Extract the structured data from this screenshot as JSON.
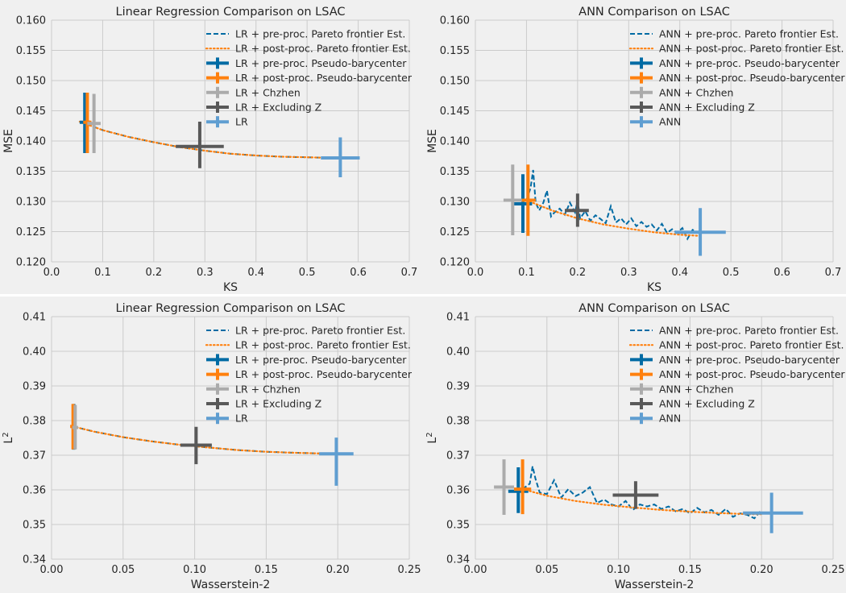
{
  "colors": {
    "background": "#f0f0f0",
    "plot_bg": "#f0f0f0",
    "grid": "#cbcbcb",
    "pre_proc": "#006ba4",
    "post_proc": "#ff800e",
    "chzhen": "#ababab",
    "excluding_z": "#595959",
    "baseline": "#5f9ed1"
  },
  "chart_data": [
    {
      "type": "line",
      "title": "Linear Regression Comparison on LSAC",
      "xlabel": "KS",
      "ylabel": "MSE",
      "ylabel_format": "plain",
      "xlim": [
        0,
        0.7
      ],
      "ylim": [
        0.12,
        0.16
      ],
      "xticks": [
        0.0,
        0.1,
        0.2,
        0.3,
        0.4,
        0.5,
        0.6,
        0.7
      ],
      "yticks": [
        0.12,
        0.125,
        0.13,
        0.135,
        0.14,
        0.145,
        0.15,
        0.155,
        0.16
      ],
      "x_decimals": 1,
      "y_decimals": 3,
      "grid": true,
      "legend_position": "top-right",
      "series": [
        {
          "name": "LR + pre-proc. Pareto frontier Est.",
          "style": "dashed",
          "color_key": "pre_proc",
          "x": [
            0.055,
            0.1,
            0.15,
            0.2,
            0.25,
            0.3,
            0.35,
            0.4,
            0.45,
            0.5,
            0.55,
            0.6
          ],
          "y": [
            0.1432,
            0.1418,
            0.1407,
            0.1398,
            0.139,
            0.1384,
            0.1379,
            0.1376,
            0.1374,
            0.1373,
            0.1372,
            0.1372
          ]
        },
        {
          "name": "LR + post-proc. Pareto frontier Est.",
          "style": "dotted",
          "color_key": "post_proc",
          "x": [
            0.055,
            0.1,
            0.15,
            0.2,
            0.25,
            0.3,
            0.35,
            0.4,
            0.45,
            0.5,
            0.55,
            0.6
          ],
          "y": [
            0.1432,
            0.1418,
            0.1407,
            0.1398,
            0.139,
            0.1384,
            0.1379,
            0.1376,
            0.1374,
            0.1373,
            0.1372,
            0.1372
          ]
        }
      ],
      "points": [
        {
          "name": "LR + pre-proc. Pseudo-barycenter",
          "color_key": "pre_proc",
          "x": 0.065,
          "y": 0.1431,
          "xerr": [
            0.055,
            0.075
          ],
          "yerr": [
            0.138,
            0.148
          ]
        },
        {
          "name": "LR + post-proc. Pseudo-barycenter",
          "color_key": "post_proc",
          "x": 0.07,
          "y": 0.1431,
          "xerr": [
            0.062,
            0.078
          ],
          "yerr": [
            0.138,
            0.148
          ]
        },
        {
          "name": "LR + Chzhen",
          "color_key": "chzhen",
          "x": 0.083,
          "y": 0.1429,
          "xerr": [
            0.07,
            0.096
          ],
          "yerr": [
            0.138,
            0.1478
          ]
        },
        {
          "name": "LR + Excluding Z",
          "color_key": "excluding_z",
          "x": 0.29,
          "y": 0.1391,
          "xerr": [
            0.243,
            0.337
          ],
          "yerr": [
            0.1355,
            0.1432
          ]
        },
        {
          "name": "LR",
          "color_key": "baseline",
          "x": 0.565,
          "y": 0.1372,
          "xerr": [
            0.527,
            0.603
          ],
          "yerr": [
            0.134,
            0.1406
          ]
        }
      ]
    },
    {
      "type": "line",
      "title": "ANN Comparison on LSAC",
      "xlabel": "KS",
      "ylabel": "MSE",
      "ylabel_format": "plain",
      "xlim": [
        0,
        0.7
      ],
      "ylim": [
        0.12,
        0.16
      ],
      "xticks": [
        0.0,
        0.1,
        0.2,
        0.3,
        0.4,
        0.5,
        0.6,
        0.7
      ],
      "yticks": [
        0.12,
        0.125,
        0.13,
        0.135,
        0.14,
        0.145,
        0.15,
        0.155,
        0.16
      ],
      "x_decimals": 1,
      "y_decimals": 3,
      "grid": true,
      "legend_position": "top-right",
      "series": [
        {
          "name": "ANN + pre-proc. Pareto frontier Est.",
          "style": "dashed",
          "color_key": "pre_proc",
          "x": [
            0.1,
            0.108,
            0.113,
            0.118,
            0.125,
            0.133,
            0.14,
            0.148,
            0.155,
            0.165,
            0.175,
            0.185,
            0.195,
            0.2,
            0.205,
            0.215,
            0.225,
            0.235,
            0.245,
            0.255,
            0.265,
            0.275,
            0.285,
            0.295,
            0.305,
            0.315,
            0.325,
            0.335,
            0.345,
            0.355,
            0.365,
            0.375,
            0.385,
            0.395,
            0.405,
            0.415,
            0.425,
            0.44
          ],
          "y": [
            0.1302,
            0.1322,
            0.1352,
            0.1298,
            0.1285,
            0.1298,
            0.1318,
            0.1275,
            0.1282,
            0.1288,
            0.1278,
            0.1298,
            0.1282,
            0.1301,
            0.1272,
            0.1284,
            0.1268,
            0.1277,
            0.1271,
            0.1264,
            0.1292,
            0.1265,
            0.1272,
            0.1262,
            0.1272,
            0.1259,
            0.1266,
            0.1258,
            0.1262,
            0.1252,
            0.1263,
            0.1248,
            0.1254,
            0.1248,
            0.1256,
            0.1238,
            0.1253,
            0.1247
          ]
        },
        {
          "name": "ANN + post-proc. Pareto frontier Est.",
          "style": "dotted",
          "color_key": "post_proc",
          "x": [
            0.1,
            0.15,
            0.2,
            0.25,
            0.3,
            0.35,
            0.4,
            0.44
          ],
          "y": [
            0.1302,
            0.1285,
            0.1272,
            0.1262,
            0.1255,
            0.1249,
            0.1245,
            0.1243
          ]
        }
      ],
      "points": [
        {
          "name": "ANN + pre-proc. Pseudo-barycenter",
          "color_key": "pre_proc",
          "x": 0.093,
          "y": 0.1296,
          "xerr": [
            0.075,
            0.111
          ],
          "yerr": [
            0.1248,
            0.1345
          ]
        },
        {
          "name": "ANN + post-proc. Pseudo-barycenter",
          "color_key": "post_proc",
          "x": 0.103,
          "y": 0.1302,
          "xerr": [
            0.088,
            0.118
          ],
          "yerr": [
            0.1243,
            0.1361
          ]
        },
        {
          "name": "ANN + Chzhen",
          "color_key": "chzhen",
          "x": 0.073,
          "y": 0.1302,
          "xerr": [
            0.055,
            0.091
          ],
          "yerr": [
            0.1244,
            0.1361
          ]
        },
        {
          "name": "ANN + Excluding Z",
          "color_key": "excluding_z",
          "x": 0.2,
          "y": 0.1285,
          "xerr": [
            0.175,
            0.222
          ],
          "yerr": [
            0.1258,
            0.1313
          ]
        },
        {
          "name": "ANN",
          "color_key": "baseline",
          "x": 0.44,
          "y": 0.1249,
          "xerr": [
            0.39,
            0.49
          ],
          "yerr": [
            0.121,
            0.1289
          ]
        }
      ]
    },
    {
      "type": "line",
      "title": "Linear Regression Comparison on LSAC",
      "xlabel": "Wasserstein-2",
      "ylabel": "L2",
      "ylabel_format": "L2",
      "xlim": [
        0,
        0.25
      ],
      "ylim": [
        0.34,
        0.41
      ],
      "xticks": [
        0.0,
        0.05,
        0.1,
        0.15,
        0.2,
        0.25
      ],
      "yticks": [
        0.34,
        0.35,
        0.36,
        0.37,
        0.38,
        0.39,
        0.4,
        0.41
      ],
      "x_decimals": 2,
      "y_decimals": 2,
      "grid": true,
      "legend_position": "top-right",
      "series": [
        {
          "name": "LR + pre-proc. Pareto frontier Est.",
          "style": "dashed",
          "color_key": "pre_proc",
          "x": [
            0.015,
            0.03,
            0.05,
            0.07,
            0.09,
            0.11,
            0.13,
            0.15,
            0.17,
            0.19,
            0.2
          ],
          "y": [
            0.3783,
            0.3768,
            0.3752,
            0.374,
            0.373,
            0.3722,
            0.3715,
            0.371,
            0.3707,
            0.3705,
            0.3704
          ]
        },
        {
          "name": "LR + post-proc. Pareto frontier Est.",
          "style": "dotted",
          "color_key": "post_proc",
          "x": [
            0.015,
            0.03,
            0.05,
            0.07,
            0.09,
            0.11,
            0.13,
            0.15,
            0.17,
            0.19,
            0.2
          ],
          "y": [
            0.3783,
            0.3768,
            0.3752,
            0.374,
            0.373,
            0.3722,
            0.3715,
            0.371,
            0.3707,
            0.3705,
            0.3704
          ]
        }
      ],
      "points": [
        {
          "name": "LR + pre-proc. Pseudo-barycenter",
          "color_key": "pre_proc",
          "x": 0.0155,
          "y": 0.3783,
          "xerr": [
            0.0145,
            0.0165
          ],
          "yerr": [
            0.3716,
            0.3848
          ]
        },
        {
          "name": "LR + post-proc. Pseudo-barycenter",
          "color_key": "post_proc",
          "x": 0.015,
          "y": 0.3783,
          "xerr": [
            0.013,
            0.017
          ],
          "yerr": [
            0.3717,
            0.3848
          ]
        },
        {
          "name": "LR + Chzhen",
          "color_key": "chzhen",
          "x": 0.0165,
          "y": 0.378,
          "xerr": [
            0.0145,
            0.0185
          ],
          "yerr": [
            0.3717,
            0.3845
          ]
        },
        {
          "name": "LR + Excluding Z",
          "color_key": "excluding_z",
          "x": 0.101,
          "y": 0.3729,
          "xerr": [
            0.09,
            0.112
          ],
          "yerr": [
            0.3674,
            0.3782
          ]
        },
        {
          "name": "LR",
          "color_key": "baseline",
          "x": 0.199,
          "y": 0.3704,
          "xerr": [
            0.187,
            0.211
          ],
          "yerr": [
            0.3612,
            0.3751
          ]
        }
      ]
    },
    {
      "type": "line",
      "title": "ANN Comparison on LSAC",
      "xlabel": "Wasserstein-2",
      "ylabel": "L2",
      "ylabel_format": "L2",
      "xlim": [
        0,
        0.25
      ],
      "ylim": [
        0.34,
        0.41
      ],
      "xticks": [
        0.0,
        0.05,
        0.1,
        0.15,
        0.2,
        0.25
      ],
      "yticks": [
        0.34,
        0.35,
        0.36,
        0.37,
        0.38,
        0.39,
        0.4,
        0.41
      ],
      "x_decimals": 2,
      "y_decimals": 2,
      "grid": true,
      "legend_position": "top-right",
      "series": [
        {
          "name": "ANN + pre-proc. Pareto frontier Est.",
          "style": "dashed",
          "color_key": "pre_proc",
          "x": [
            0.033,
            0.038,
            0.04,
            0.042,
            0.045,
            0.05,
            0.055,
            0.06,
            0.065,
            0.07,
            0.075,
            0.08,
            0.085,
            0.09,
            0.095,
            0.1,
            0.105,
            0.11,
            0.115,
            0.12,
            0.125,
            0.13,
            0.135,
            0.14,
            0.145,
            0.15,
            0.155,
            0.16,
            0.165,
            0.17,
            0.175,
            0.18,
            0.185,
            0.19,
            0.195,
            0.2
          ],
          "y": [
            0.3602,
            0.3618,
            0.3668,
            0.3632,
            0.3592,
            0.3588,
            0.3628,
            0.3578,
            0.3602,
            0.3582,
            0.3592,
            0.3608,
            0.3562,
            0.3572,
            0.3558,
            0.3552,
            0.3568,
            0.3542,
            0.3558,
            0.3552,
            0.3558,
            0.3545,
            0.3552,
            0.3538,
            0.3545,
            0.3532,
            0.3548,
            0.3535,
            0.3542,
            0.3528,
            0.3545,
            0.3522,
            0.3532,
            0.3528,
            0.3518,
            0.3542
          ]
        },
        {
          "name": "ANN + post-proc. Pareto frontier Est.",
          "style": "dotted",
          "color_key": "post_proc",
          "x": [
            0.033,
            0.05,
            0.07,
            0.09,
            0.11,
            0.13,
            0.15,
            0.17,
            0.19,
            0.2
          ],
          "y": [
            0.3602,
            0.3583,
            0.3568,
            0.3557,
            0.3549,
            0.3542,
            0.3537,
            0.3533,
            0.353,
            0.353
          ]
        }
      ],
      "points": [
        {
          "name": "ANN + pre-proc. Pseudo-barycenter",
          "color_key": "pre_proc",
          "x": 0.03,
          "y": 0.3596,
          "xerr": [
            0.023,
            0.037
          ],
          "yerr": [
            0.3533,
            0.3665
          ]
        },
        {
          "name": "ANN + post-proc. Pseudo-barycenter",
          "color_key": "post_proc",
          "x": 0.033,
          "y": 0.3602,
          "xerr": [
            0.027,
            0.039
          ],
          "yerr": [
            0.353,
            0.3688
          ]
        },
        {
          "name": "ANN + Chzhen",
          "color_key": "chzhen",
          "x": 0.02,
          "y": 0.3608,
          "xerr": [
            0.013,
            0.027
          ],
          "yerr": [
            0.3528,
            0.3688
          ]
        },
        {
          "name": "ANN + Excluding Z",
          "color_key": "excluding_z",
          "x": 0.112,
          "y": 0.3585,
          "xerr": [
            0.096,
            0.128
          ],
          "yerr": [
            0.3545,
            0.3625
          ]
        },
        {
          "name": "ANN",
          "color_key": "baseline",
          "x": 0.207,
          "y": 0.3533,
          "xerr": [
            0.187,
            0.229
          ],
          "yerr": [
            0.3475,
            0.3592
          ]
        }
      ]
    }
  ]
}
